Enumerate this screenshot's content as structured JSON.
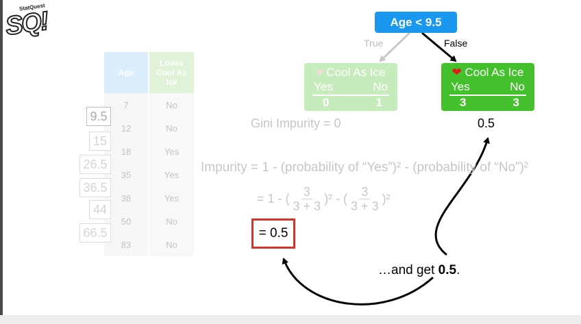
{
  "logo": {
    "big": "SQ!",
    "small": "StatQuest"
  },
  "table": {
    "headers": [
      "Age",
      "Loves Cool As Ice"
    ],
    "rows": [
      {
        "age": "7",
        "loves": "No"
      },
      {
        "age": "12",
        "loves": "No"
      },
      {
        "age": "18",
        "loves": "Yes"
      },
      {
        "age": "35",
        "loves": "Yes"
      },
      {
        "age": "38",
        "loves": "Yes"
      },
      {
        "age": "50",
        "loves": "No"
      },
      {
        "age": "83",
        "loves": "No"
      }
    ],
    "thresholds": [
      "9.5",
      "15",
      "26.5",
      "36.5",
      "44",
      "66.5"
    ]
  },
  "tree": {
    "root_label": "Age < 9.5",
    "true_label": "True",
    "false_label": "False",
    "left_leaf": {
      "title": "Cool As Ice",
      "yes_label": "Yes",
      "no_label": "No",
      "yes": "0",
      "no": "1",
      "impurity_text": "Gini Impurity = 0"
    },
    "right_leaf": {
      "title": "Cool As Ice",
      "yes_label": "Yes",
      "no_label": "No",
      "yes": "3",
      "no": "3",
      "impurity_value": "0.5"
    }
  },
  "formula": {
    "line1": "Impurity = 1 - (probability of “Yes”)² - (probability of “No”)²",
    "line2_prefix": "= 1 - (",
    "frac1_num": "3",
    "frac1_den": "3 + 3",
    "mid": ")² - (",
    "frac2_num": "3",
    "frac2_den": "3 + 3",
    "end": ")²",
    "result": "= 0.5"
  },
  "caption": {
    "prefix": "…and get ",
    "value": "0.5",
    "suffix": "."
  },
  "colors": {
    "root": "#1a98f0",
    "leaf_active": "#45c02d",
    "leaf_faded": "#c7ecbc",
    "result_box": "#d8312a",
    "header_age": "#d3e8fb",
    "header_loves": "#d9f0cf"
  }
}
